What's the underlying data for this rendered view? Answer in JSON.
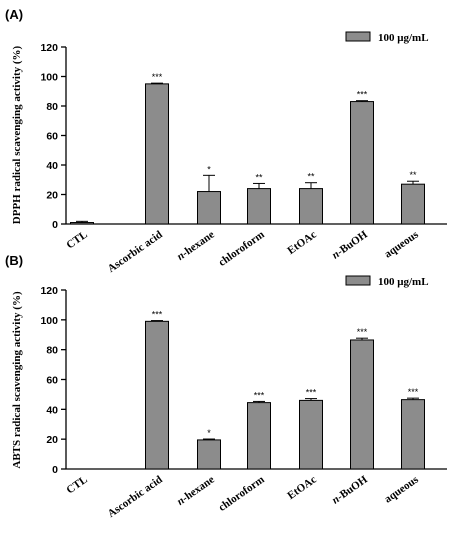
{
  "figure": {
    "panels": [
      {
        "label": "(A)"
      },
      {
        "label": "(B)"
      }
    ]
  },
  "colors": {
    "bar": "#8c8c8c",
    "axis": "#000000"
  },
  "chart_data": [
    {
      "type": "bar",
      "panel": "(A)",
      "categories": [
        "CTL",
        "Ascorbic acid",
        "n-hexane",
        "chloroform",
        "EtOAc",
        "n-BuOH",
        "aqueous"
      ],
      "series": [
        {
          "name": "100 μg/mL",
          "values": [
            1,
            95,
            22,
            24,
            24,
            83,
            27
          ],
          "errors": [
            0.8,
            0.5,
            11,
            3.5,
            4,
            0.6,
            2
          ],
          "significance": [
            "",
            "***",
            "*",
            "**",
            "**",
            "***",
            "**"
          ]
        }
      ],
      "xlabel": "",
      "ylabel": "DPPH radical scavenging activity (%)",
      "ylim": [
        0,
        120
      ],
      "yticks": [
        "0",
        "20",
        "40",
        "60",
        "80",
        "100",
        "120"
      ],
      "legend": "top-right",
      "grid": false
    },
    {
      "type": "bar",
      "panel": "(B)",
      "categories": [
        "CTL",
        "Ascorbic acid",
        "n-hexane",
        "chloroform",
        "EtOAc",
        "n-BuOH",
        "aqueous"
      ],
      "series": [
        {
          "name": "100 μg/mL",
          "values": [
            0,
            99,
            19.5,
            44.5,
            46,
            86.5,
            46.5
          ],
          "errors": [
            0,
            0.5,
            0.6,
            0.8,
            1.2,
            1.2,
            1.0
          ],
          "significance": [
            "",
            "***",
            "*",
            "***",
            "***",
            "***",
            "***"
          ]
        }
      ],
      "xlabel": "",
      "ylabel": "ABTS radical scavenging activity (%)",
      "ylim": [
        0,
        120
      ],
      "yticks": [
        "0",
        "20",
        "40",
        "60",
        "80",
        "100",
        "120"
      ],
      "legend": "top-right",
      "grid": false
    }
  ]
}
